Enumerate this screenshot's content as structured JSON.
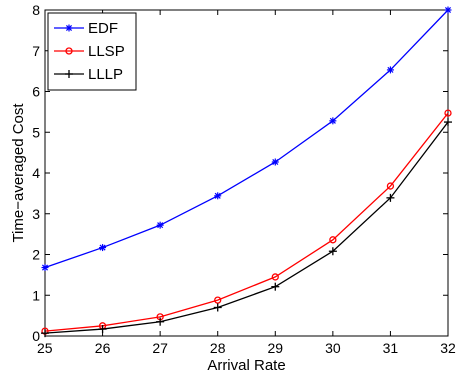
{
  "chart_data": {
    "type": "line",
    "title": "",
    "xlabel": "Arrival Rate",
    "ylabel": "Time−averaged Cost",
    "xlim": [
      25,
      32
    ],
    "ylim": [
      0,
      8
    ],
    "x": [
      25,
      26,
      27,
      28,
      29,
      30,
      31,
      32
    ],
    "xticks": [
      "25",
      "26",
      "27",
      "28",
      "29",
      "30",
      "31",
      "32"
    ],
    "yticks": [
      "0",
      "1",
      "2",
      "3",
      "4",
      "5",
      "6",
      "7",
      "8"
    ],
    "grid": false,
    "legend_position": "top-left",
    "series": [
      {
        "name": "EDF",
        "color": "#0000ff",
        "marker": "asterisk",
        "values": [
          1.68,
          2.17,
          2.72,
          3.44,
          4.27,
          5.28,
          6.53,
          8.0
        ]
      },
      {
        "name": "LLSP",
        "color": "#ff0000",
        "marker": "circle",
        "values": [
          0.12,
          0.25,
          0.47,
          0.88,
          1.45,
          2.36,
          3.68,
          5.47
        ]
      },
      {
        "name": "LLLP",
        "color": "#000000",
        "marker": "plus",
        "values": [
          0.07,
          0.17,
          0.35,
          0.7,
          1.21,
          2.08,
          3.39,
          5.25
        ]
      }
    ]
  }
}
